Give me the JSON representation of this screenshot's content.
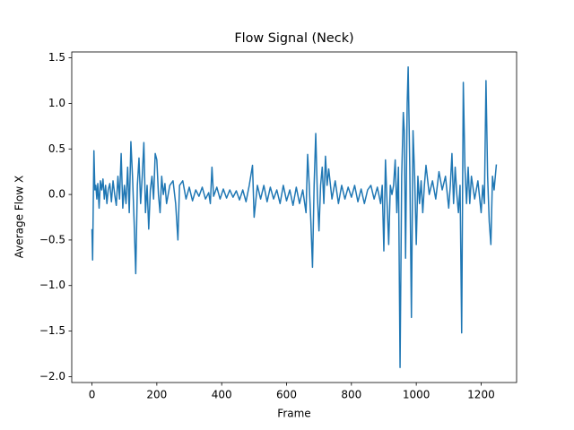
{
  "chart_data": {
    "type": "line",
    "title": "Flow Signal (Neck)",
    "xlabel": "Frame",
    "ylabel": "Average Flow X",
    "x": [
      0,
      2,
      4,
      6,
      9,
      12,
      15,
      18,
      22,
      26,
      30,
      34,
      38,
      42,
      46,
      50,
      55,
      60,
      65,
      70,
      75,
      80,
      85,
      90,
      95,
      100,
      105,
      110,
      115,
      120,
      125,
      130,
      135,
      140,
      145,
      150,
      155,
      160,
      165,
      170,
      175,
      180,
      185,
      190,
      195,
      200,
      205,
      210,
      215,
      220,
      225,
      230,
      240,
      250,
      258,
      265,
      270,
      280,
      290,
      300,
      310,
      320,
      330,
      340,
      350,
      360,
      365,
      370,
      375,
      385,
      395,
      405,
      415,
      425,
      435,
      445,
      455,
      465,
      475,
      485,
      495,
      500,
      510,
      520,
      530,
      540,
      550,
      560,
      570,
      580,
      590,
      600,
      610,
      620,
      630,
      640,
      650,
      660,
      665,
      670,
      675,
      680,
      685,
      690,
      695,
      700,
      705,
      710,
      715,
      720,
      725,
      730,
      740,
      750,
      760,
      770,
      780,
      790,
      800,
      810,
      820,
      830,
      840,
      850,
      860,
      870,
      880,
      890,
      895,
      900,
      905,
      910,
      915,
      920,
      925,
      930,
      935,
      940,
      945,
      950,
      955,
      960,
      963,
      967,
      972,
      975,
      980,
      985,
      990,
      995,
      1000,
      1005,
      1010,
      1015,
      1020,
      1025,
      1030,
      1040,
      1050,
      1060,
      1070,
      1080,
      1090,
      1100,
      1105,
      1110,
      1115,
      1120,
      1125,
      1130,
      1135,
      1140,
      1145,
      1150,
      1155,
      1160,
      1165,
      1170,
      1180,
      1190,
      1200,
      1205,
      1210,
      1215,
      1220,
      1225,
      1230,
      1235,
      1240,
      1247
    ],
    "series": [
      {
        "name": "Average Flow X",
        "color": "#1f77b4",
        "values": [
          -0.38,
          -0.72,
          -0.1,
          0.48,
          0.05,
          0.1,
          -0.05,
          0.12,
          -0.15,
          0.15,
          0.05,
          0.17,
          -0.05,
          0.1,
          -0.1,
          0.05,
          0.12,
          -0.08,
          0.15,
          0.0,
          -0.12,
          0.2,
          -0.05,
          0.45,
          -0.15,
          0.1,
          -0.1,
          0.3,
          -0.2,
          0.58,
          0.2,
          -0.3,
          -0.87,
          0.1,
          0.4,
          -0.1,
          0.2,
          0.57,
          -0.2,
          0.1,
          -0.38,
          0.05,
          0.2,
          -0.05,
          0.45,
          0.38,
          0.0,
          -0.2,
          0.2,
          0.0,
          0.12,
          -0.1,
          0.1,
          0.15,
          -0.1,
          -0.5,
          0.1,
          0.15,
          -0.05,
          0.08,
          -0.07,
          0.05,
          -0.02,
          0.08,
          -0.05,
          0.02,
          -0.1,
          0.3,
          -0.02,
          0.08,
          -0.05,
          0.06,
          -0.04,
          0.05,
          -0.03,
          0.04,
          -0.06,
          0.05,
          -0.08,
          0.1,
          0.32,
          -0.25,
          0.1,
          -0.05,
          0.1,
          -0.08,
          0.08,
          -0.05,
          0.05,
          -0.1,
          0.1,
          -0.07,
          0.05,
          -0.12,
          0.08,
          -0.1,
          0.05,
          -0.2,
          0.44,
          0.1,
          -0.3,
          -0.8,
          0.1,
          0.67,
          0.0,
          -0.4,
          0.1,
          0.3,
          -0.1,
          0.42,
          0.1,
          0.28,
          -0.05,
          0.15,
          -0.1,
          0.1,
          -0.05,
          0.08,
          -0.03,
          0.1,
          -0.08,
          0.06,
          -0.1,
          0.05,
          0.1,
          -0.05,
          0.08,
          -0.1,
          0.1,
          -0.62,
          0.38,
          -0.1,
          -0.55,
          0.1,
          0.0,
          0.1,
          0.38,
          -0.2,
          0.3,
          -1.9,
          0.2,
          0.9,
          0.7,
          -0.7,
          1.0,
          1.4,
          0.3,
          -1.35,
          0.7,
          0.2,
          -0.55,
          0.2,
          -0.1,
          0.15,
          -0.2,
          0.1,
          0.32,
          0.0,
          0.15,
          -0.05,
          0.25,
          0.05,
          0.2,
          -0.15,
          0.1,
          0.45,
          -0.1,
          0.3,
          0.0,
          -0.2,
          0.1,
          -1.52,
          1.23,
          0.3,
          -0.1,
          0.3,
          -0.1,
          0.2,
          -0.05,
          0.15,
          -0.2,
          0.1,
          -0.1,
          1.25,
          0.2,
          -0.3,
          -0.55,
          0.2,
          0.05,
          0.33
        ]
      }
    ],
    "xlim": [
      -62.35,
      1309.35
    ],
    "xticks": [
      0,
      200,
      400,
      600,
      800,
      1000,
      1200
    ],
    "ylim": [
      -2.065,
      1.565
    ],
    "yticks": [
      {
        "value": -2.0,
        "label": "−2.0"
      },
      {
        "value": -1.5,
        "label": "−1.5"
      },
      {
        "value": -1.0,
        "label": "−1.0"
      },
      {
        "value": -0.5,
        "label": "−0.5"
      },
      {
        "value": 0.0,
        "label": "0.0"
      },
      {
        "value": 0.5,
        "label": "0.5"
      },
      {
        "value": 1.0,
        "label": "1.0"
      },
      {
        "value": 1.5,
        "label": "1.5"
      }
    ],
    "grid": false
  }
}
